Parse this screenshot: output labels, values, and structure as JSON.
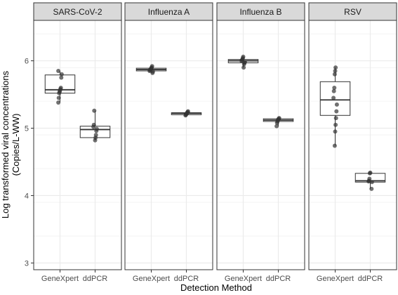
{
  "chart_data": {
    "type": "boxplot",
    "xlabel": "Detection Method",
    "ylabel_lines": [
      "Log transformed viral concentrations",
      "(Copies/L-WW)"
    ],
    "ylim": [
      2.9,
      6.6
    ],
    "yticks": [
      3,
      4,
      5,
      6
    ],
    "grid": true,
    "categories": [
      "GeneXpert",
      "ddPCR"
    ],
    "facets": [
      {
        "name": "SARS-CoV-2",
        "boxes": [
          {
            "category": "GeneXpert",
            "min": 5.38,
            "q1": 5.52,
            "median": 5.57,
            "q3": 5.79,
            "max": 5.85,
            "points": [
              5.38,
              5.45,
              5.52,
              5.54,
              5.56,
              5.58,
              5.6,
              5.75,
              5.8,
              5.85
            ]
          },
          {
            "category": "ddPCR",
            "min": 4.82,
            "q1": 4.86,
            "median": 4.98,
            "q3": 5.03,
            "max": 5.26,
            "points": [
              4.82,
              4.86,
              4.9,
              4.96,
              4.99,
              5.02,
              5.05,
              5.26
            ]
          }
        ]
      },
      {
        "name": "Influenza A",
        "boxes": [
          {
            "category": "GeneXpert",
            "min": 5.82,
            "q1": 5.85,
            "median": 5.87,
            "q3": 5.89,
            "max": 5.92,
            "points": [
              5.82,
              5.84,
              5.85,
              5.86,
              5.87,
              5.88,
              5.89,
              5.9,
              5.92
            ]
          },
          {
            "category": "ddPCR",
            "min": 5.19,
            "q1": 5.2,
            "median": 5.22,
            "q3": 5.23,
            "max": 5.25,
            "points": [
              5.19,
              5.2,
              5.21,
              5.22,
              5.23,
              5.24,
              5.25
            ]
          }
        ]
      },
      {
        "name": "Influenza B",
        "boxes": [
          {
            "category": "GeneXpert",
            "min": 5.9,
            "q1": 5.97,
            "median": 6.0,
            "q3": 6.02,
            "max": 6.06,
            "points": [
              5.9,
              5.95,
              5.97,
              5.98,
              6.0,
              6.01,
              6.02,
              6.04,
              6.06
            ]
          },
          {
            "category": "ddPCR",
            "min": 5.03,
            "q1": 5.1,
            "median": 5.12,
            "q3": 5.14,
            "max": 5.15,
            "points": [
              5.03,
              5.08,
              5.1,
              5.12,
              5.13,
              5.14,
              5.15
            ]
          }
        ]
      },
      {
        "name": "RSV",
        "boxes": [
          {
            "category": "GeneXpert",
            "min": 4.74,
            "q1": 5.19,
            "median": 5.42,
            "q3": 5.69,
            "max": 5.9,
            "points": [
              4.74,
              4.95,
              5.05,
              5.15,
              5.25,
              5.35,
              5.45,
              5.55,
              5.6,
              5.8,
              5.85,
              5.9
            ]
          },
          {
            "category": "ddPCR",
            "min": 4.1,
            "q1": 4.2,
            "median": 4.22,
            "q3": 4.33,
            "max": 4.34,
            "points": [
              4.1,
              4.2,
              4.21,
              4.22,
              4.25,
              4.33,
              4.34
            ]
          }
        ]
      }
    ],
    "colors": {
      "strip_bg": "#d9d9d9",
      "panel_border": "#333333",
      "grid": "#ebebeb",
      "box_fill": "#ffffff",
      "box_line": "#333333",
      "point": "#333333"
    }
  }
}
